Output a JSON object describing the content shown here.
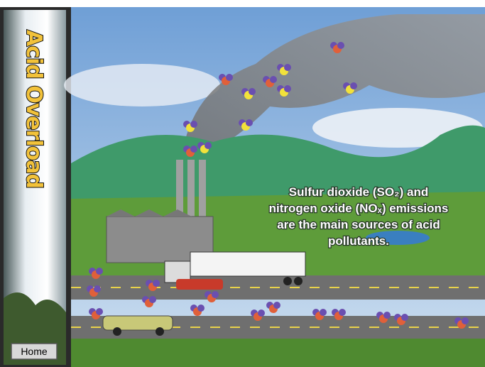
{
  "sidebar": {
    "title": "Acid Overload",
    "home_button": "Home"
  },
  "caption": {
    "lines": [
      "Sulfur dioxide  (SO₂) and",
      "nitrogen oxide (NOₓ) emissions",
      "are  the main sources of acid",
      "pollutants."
    ]
  }
}
